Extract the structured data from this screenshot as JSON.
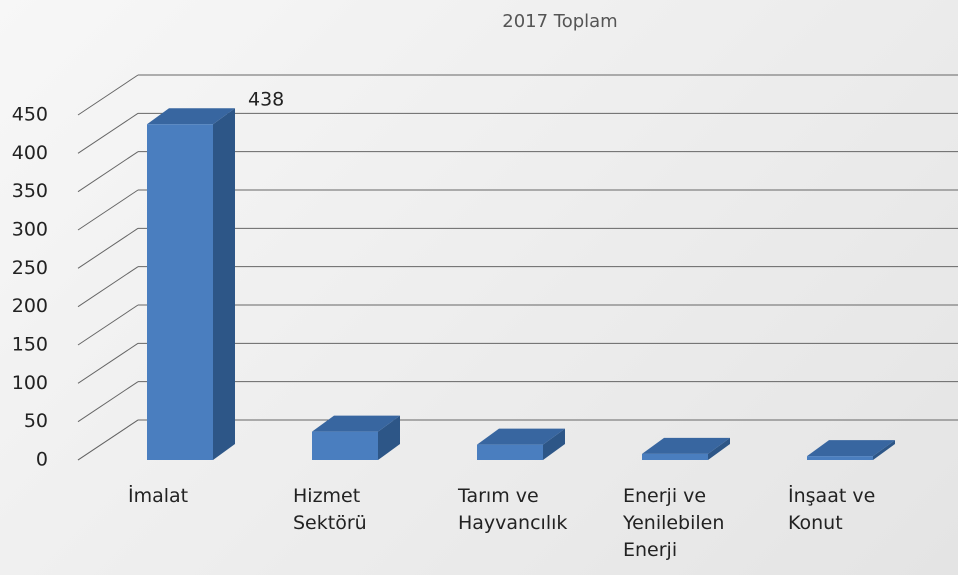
{
  "chart_data": {
    "type": "bar3d",
    "title": "2017 Toplam",
    "categories": [
      "İmalat",
      "Hizmet Sektörü",
      "Tarım ve Hayvancılık",
      "Enerji ve Yenilebilen Enerji",
      "İnşaat ve Konut"
    ],
    "values": [
      438,
      37,
      20,
      8,
      5
    ],
    "color": "#4a7ebf",
    "ylim": [
      0,
      450
    ],
    "yticks": [
      0,
      50,
      100,
      150,
      200,
      250,
      300,
      350,
      400,
      450
    ],
    "grid": true
  }
}
